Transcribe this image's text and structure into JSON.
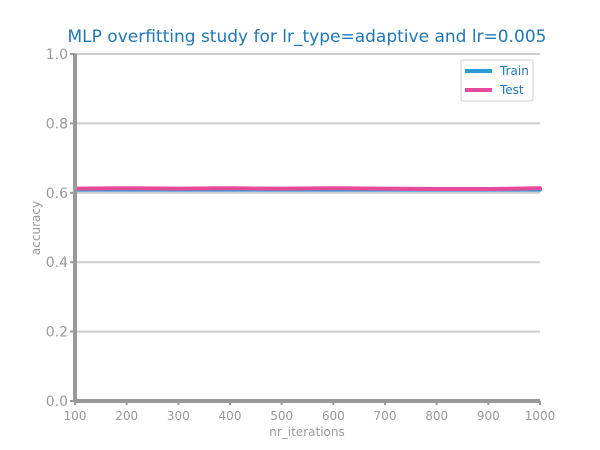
{
  "chart_data": {
    "type": "line",
    "title": "MLP overfitting study for lr_type=adaptive and lr=0.005",
    "xlabel": "nr_iterations",
    "ylabel": "accuracy",
    "x": [
      100,
      200,
      300,
      400,
      500,
      600,
      700,
      800,
      900,
      1000
    ],
    "xlim": [
      100,
      1000
    ],
    "ylim": [
      0,
      1
    ],
    "xticks": [
      "100",
      "200",
      "300",
      "400",
      "500",
      "600",
      "700",
      "800",
      "900",
      "1000"
    ],
    "yticks": [
      "0.0",
      "0.2",
      "0.4",
      "0.6",
      "0.8",
      "1.0"
    ],
    "grid": "horizontal",
    "legend_position": "top-right",
    "series": [
      {
        "name": "Train",
        "color": "#2a9ad6",
        "values": [
          0.609,
          0.609,
          0.609,
          0.609,
          0.609,
          0.609,
          0.609,
          0.609,
          0.609,
          0.609
        ]
      },
      {
        "name": "Test",
        "color": "#e84a9b",
        "values": [
          0.612,
          0.613,
          0.612,
          0.613,
          0.612,
          0.613,
          0.612,
          0.611,
          0.611,
          0.613
        ]
      }
    ]
  }
}
